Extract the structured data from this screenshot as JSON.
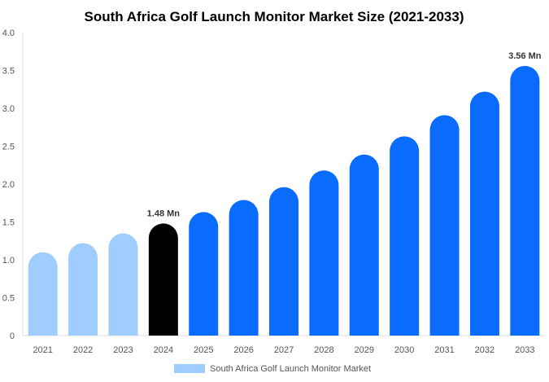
{
  "chart_data": {
    "type": "bar",
    "title": "South Africa Golf Launch Monitor Market Size (2021-2033)",
    "xlabel": "",
    "ylabel": "",
    "categories": [
      "2021",
      "2022",
      "2023",
      "2024",
      "2025",
      "2026",
      "2027",
      "2028",
      "2029",
      "2030",
      "2031",
      "2032",
      "2033"
    ],
    "series": [
      {
        "name": "South Africa Golf Launch Monitor Market",
        "values": [
          1.1,
          1.22,
          1.35,
          1.48,
          1.63,
          1.79,
          1.96,
          2.18,
          2.39,
          2.63,
          2.91,
          3.22,
          3.56
        ]
      }
    ],
    "bar_colors": {
      "historical": "#9fcdff",
      "base_year": "#000000",
      "forecast": "#0a6cff"
    },
    "data_labels": [
      {
        "category": "2024",
        "text": "1.48 Mn"
      },
      {
        "category": "2033",
        "text": "3.56 Mn"
      }
    ],
    "yticks": [
      "0",
      "0.5",
      "1.0",
      "1.5",
      "2.0",
      "2.5",
      "3.0",
      "3.5",
      "4.0"
    ],
    "ylim": [
      0,
      4.0
    ],
    "grid": false,
    "legend": "bottom"
  }
}
